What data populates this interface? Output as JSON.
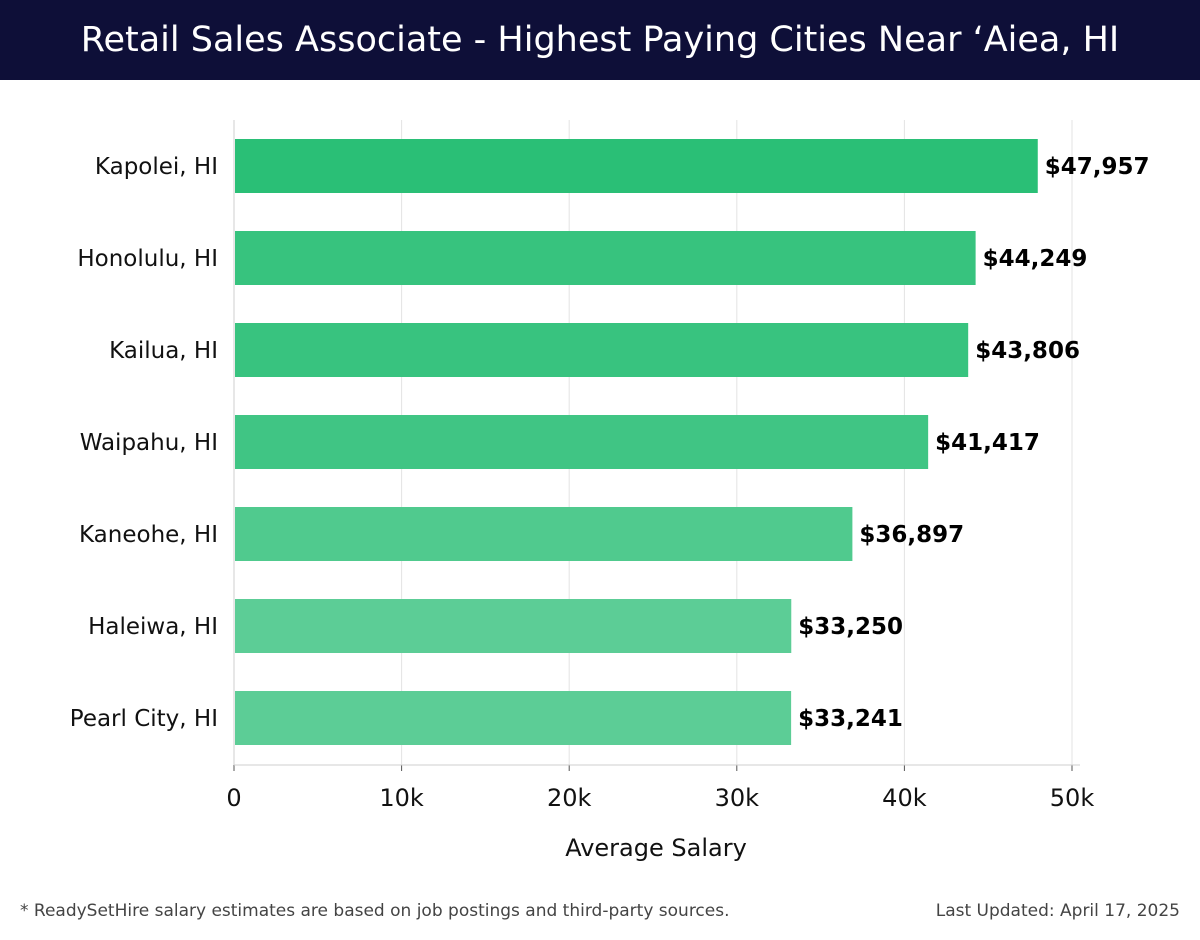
{
  "header": {
    "title": "Retail Sales Associate - Highest Paying Cities Near ‘Aiea, HI"
  },
  "footer": {
    "note": "* ReadySetHire salary estimates are based on job postings and third-party sources.",
    "updated": "Last Updated: April 17, 2025"
  },
  "colors": {
    "header_bg": "#0e0f38",
    "bar_dark": "#2abf76",
    "bar_light": "#5ccd96",
    "grid": "#e3e3e3"
  },
  "chart_data": {
    "type": "bar",
    "orientation": "horizontal",
    "title": "Retail Sales Associate - Highest Paying Cities Near ‘Aiea, HI",
    "xlabel": "Average Salary",
    "ylabel": "",
    "xlim": [
      0,
      50000
    ],
    "ticks": [
      0,
      10000,
      20000,
      30000,
      40000,
      50000
    ],
    "tick_labels": [
      "0",
      "10k",
      "20k",
      "30k",
      "40k",
      "50k"
    ],
    "grid": true,
    "categories": [
      "Kapolei, HI",
      "Honolulu, HI",
      "Kailua, HI",
      "Waipahu, HI",
      "Kaneohe, HI",
      "Haleiwa, HI",
      "Pearl City, HI"
    ],
    "values": [
      47957,
      44249,
      43806,
      41417,
      36897,
      33250,
      33241
    ],
    "value_labels": [
      "$47,957",
      "$44,249",
      "$43,806",
      "$41,417",
      "$36,897",
      "$33,250",
      "$33,241"
    ]
  }
}
